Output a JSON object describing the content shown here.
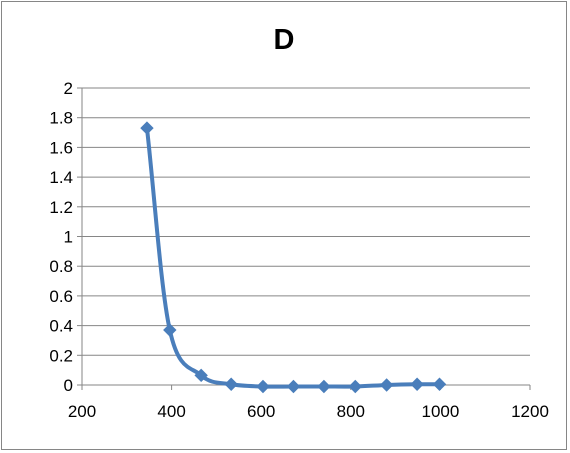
{
  "chart_data": {
    "type": "scatter",
    "title": "D",
    "xlabel": "",
    "ylabel": "",
    "xlim": [
      200,
      1200
    ],
    "ylim": [
      0,
      2
    ],
    "x_ticks": [
      "200",
      "400",
      "600",
      "800",
      "1000",
      "1200"
    ],
    "y_ticks": [
      "0",
      "0.2",
      "0.4",
      "0.6",
      "0.8",
      "1",
      "1.2",
      "1.4",
      "1.6",
      "1.8",
      "2"
    ],
    "grid": "horizontal",
    "smoothed_line": true,
    "marker": "diamond",
    "series": [
      {
        "color": "#4a7ebb",
        "points": [
          {
            "x": 345,
            "y": 1.73
          },
          {
            "x": 396,
            "y": 0.37
          },
          {
            "x": 466,
            "y": 0.065
          },
          {
            "x": 533,
            "y": 0.005
          },
          {
            "x": 604,
            "y": -0.01
          },
          {
            "x": 672,
            "y": -0.01
          },
          {
            "x": 740,
            "y": -0.01
          },
          {
            "x": 810,
            "y": -0.01
          },
          {
            "x": 880,
            "y": 0.0
          },
          {
            "x": 948,
            "y": 0.005
          },
          {
            "x": 998,
            "y": 0.005
          }
        ]
      }
    ]
  }
}
